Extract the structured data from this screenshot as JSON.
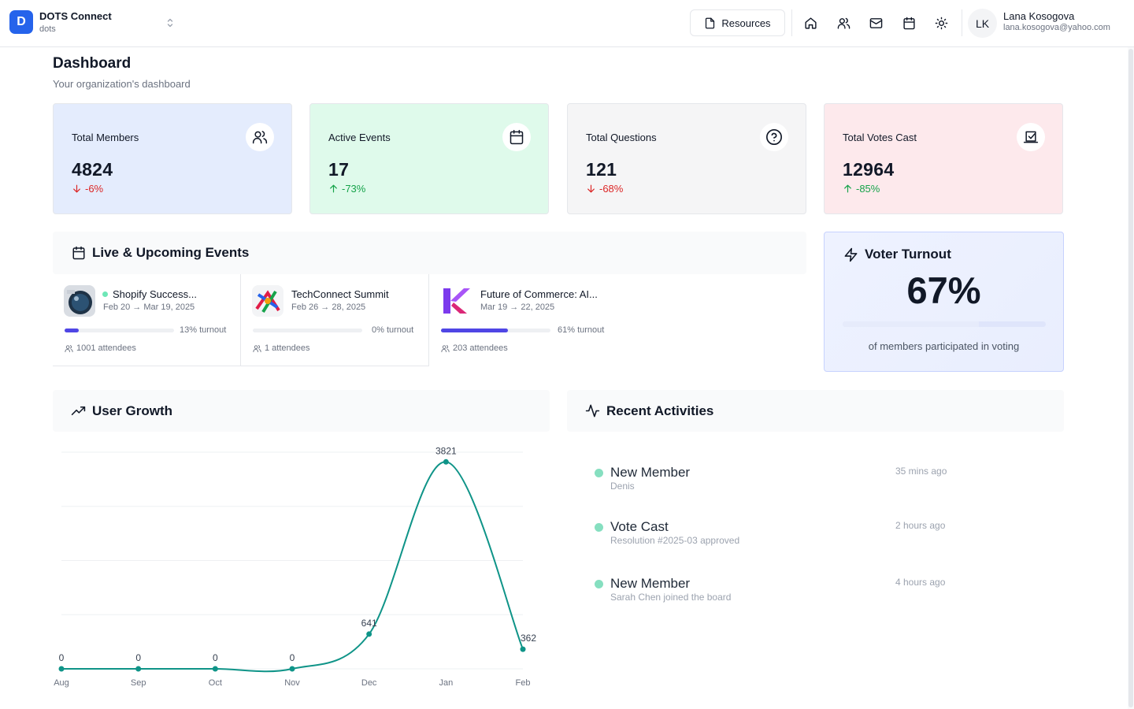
{
  "org": {
    "initial": "D",
    "name": "DOTS Connect",
    "slug": "dots"
  },
  "header": {
    "resources_label": "Resources",
    "nav_icons": [
      "home-icon",
      "users-icon",
      "mail-icon",
      "calendar-icon",
      "sun-icon"
    ],
    "user": {
      "initials": "LK",
      "name": "Lana Kosogova",
      "email": "lana.kosogova@yahoo.com"
    }
  },
  "page": {
    "title": "Dashboard",
    "subtitle": "Your organization's dashboard"
  },
  "stats": [
    {
      "label": "Total Members",
      "value": "4824",
      "change": "-6%",
      "direction": "down",
      "icon": "users-icon",
      "color": "#e4ecfd"
    },
    {
      "label": "Active Events",
      "value": "17",
      "change": "-73%",
      "direction": "up",
      "icon": "calendar-icon",
      "color": "#dffaeb"
    },
    {
      "label": "Total Questions",
      "value": "121",
      "change": "-68%",
      "direction": "down",
      "icon": "help-circle-icon",
      "color": "#f5f5f6"
    },
    {
      "label": "Total Votes Cast",
      "value": "12964",
      "change": "-85%",
      "direction": "up",
      "icon": "vote-icon",
      "color": "#fde9ec"
    }
  ],
  "events_panel": {
    "title": "Live & Upcoming Events",
    "events": [
      {
        "name": "Shopify Success...",
        "live": true,
        "date": "Feb 20 → Mar 19, 2025",
        "turnout_label": "13% turnout",
        "turnout": 0.13,
        "attendees": "1001 attendees"
      },
      {
        "name": "TechConnect Summit",
        "live": false,
        "date": "Feb 26 → 28, 2025",
        "turnout_label": "0% turnout",
        "turnout": 0.0,
        "attendees": "1 attendees"
      },
      {
        "name": "Future of Commerce: AI...",
        "live": false,
        "date": "Mar 19 → 22, 2025",
        "turnout_label": "61% turnout",
        "turnout": 0.61,
        "attendees": "203 attendees"
      }
    ]
  },
  "voter_turnout": {
    "title": "Voter Turnout",
    "value": "67%",
    "fraction": 0.67,
    "caption": "of members participated in voting"
  },
  "growth_panel": {
    "title": "User Growth"
  },
  "chart_data": {
    "type": "line",
    "title": "",
    "xlabel": "",
    "ylabel": "",
    "categories": [
      "Aug",
      "Sep",
      "Oct",
      "Nov",
      "Dec",
      "Jan",
      "Feb"
    ],
    "values": [
      0,
      0,
      0,
      0,
      641,
      3821,
      362
    ],
    "data_labels": [
      "0",
      "0",
      "0",
      "0",
      "641",
      "3821",
      "362"
    ],
    "ylim": [
      0,
      4000
    ],
    "grid": true,
    "legend": "none",
    "color": "#0f9488"
  },
  "activities_panel": {
    "title": "Recent Activities",
    "items": [
      {
        "title": "New Member",
        "desc": "Denis",
        "time": "35 mins ago"
      },
      {
        "title": "Vote Cast",
        "desc": "Resolution #2025-03 approved",
        "time": "2 hours ago"
      },
      {
        "title": "New Member",
        "desc": "Sarah Chen joined the board",
        "time": "4 hours ago"
      }
    ]
  }
}
